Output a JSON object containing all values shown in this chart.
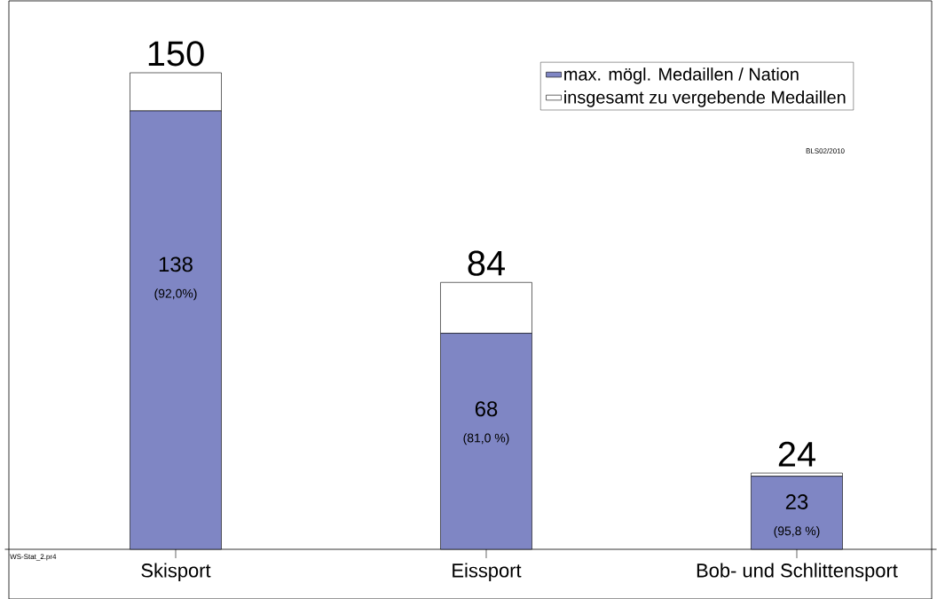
{
  "chart_data": {
    "type": "bar",
    "stacked": true,
    "categories": [
      "Skisport",
      "Eissport",
      "Bob- und Schlittensport"
    ],
    "series": [
      {
        "name": "max. mögl. Medaillen / Nation",
        "color": "#7f86c4",
        "values": [
          138,
          68,
          23
        ],
        "value_labels": [
          "138",
          "68",
          "23"
        ]
      },
      {
        "name": "insgesamt zu vergebende Medaillen",
        "color": "#ffffff",
        "values": [
          12,
          16,
          1
        ]
      }
    ],
    "totals": [
      "150",
      "84",
      "24"
    ],
    "legend": "top right",
    "annotations": [
      "(92,0%)",
      "(81,0 %)",
      "(95,8 %)",
      "BLS02/2010",
      "WS-Stat_2.pr4"
    ]
  }
}
